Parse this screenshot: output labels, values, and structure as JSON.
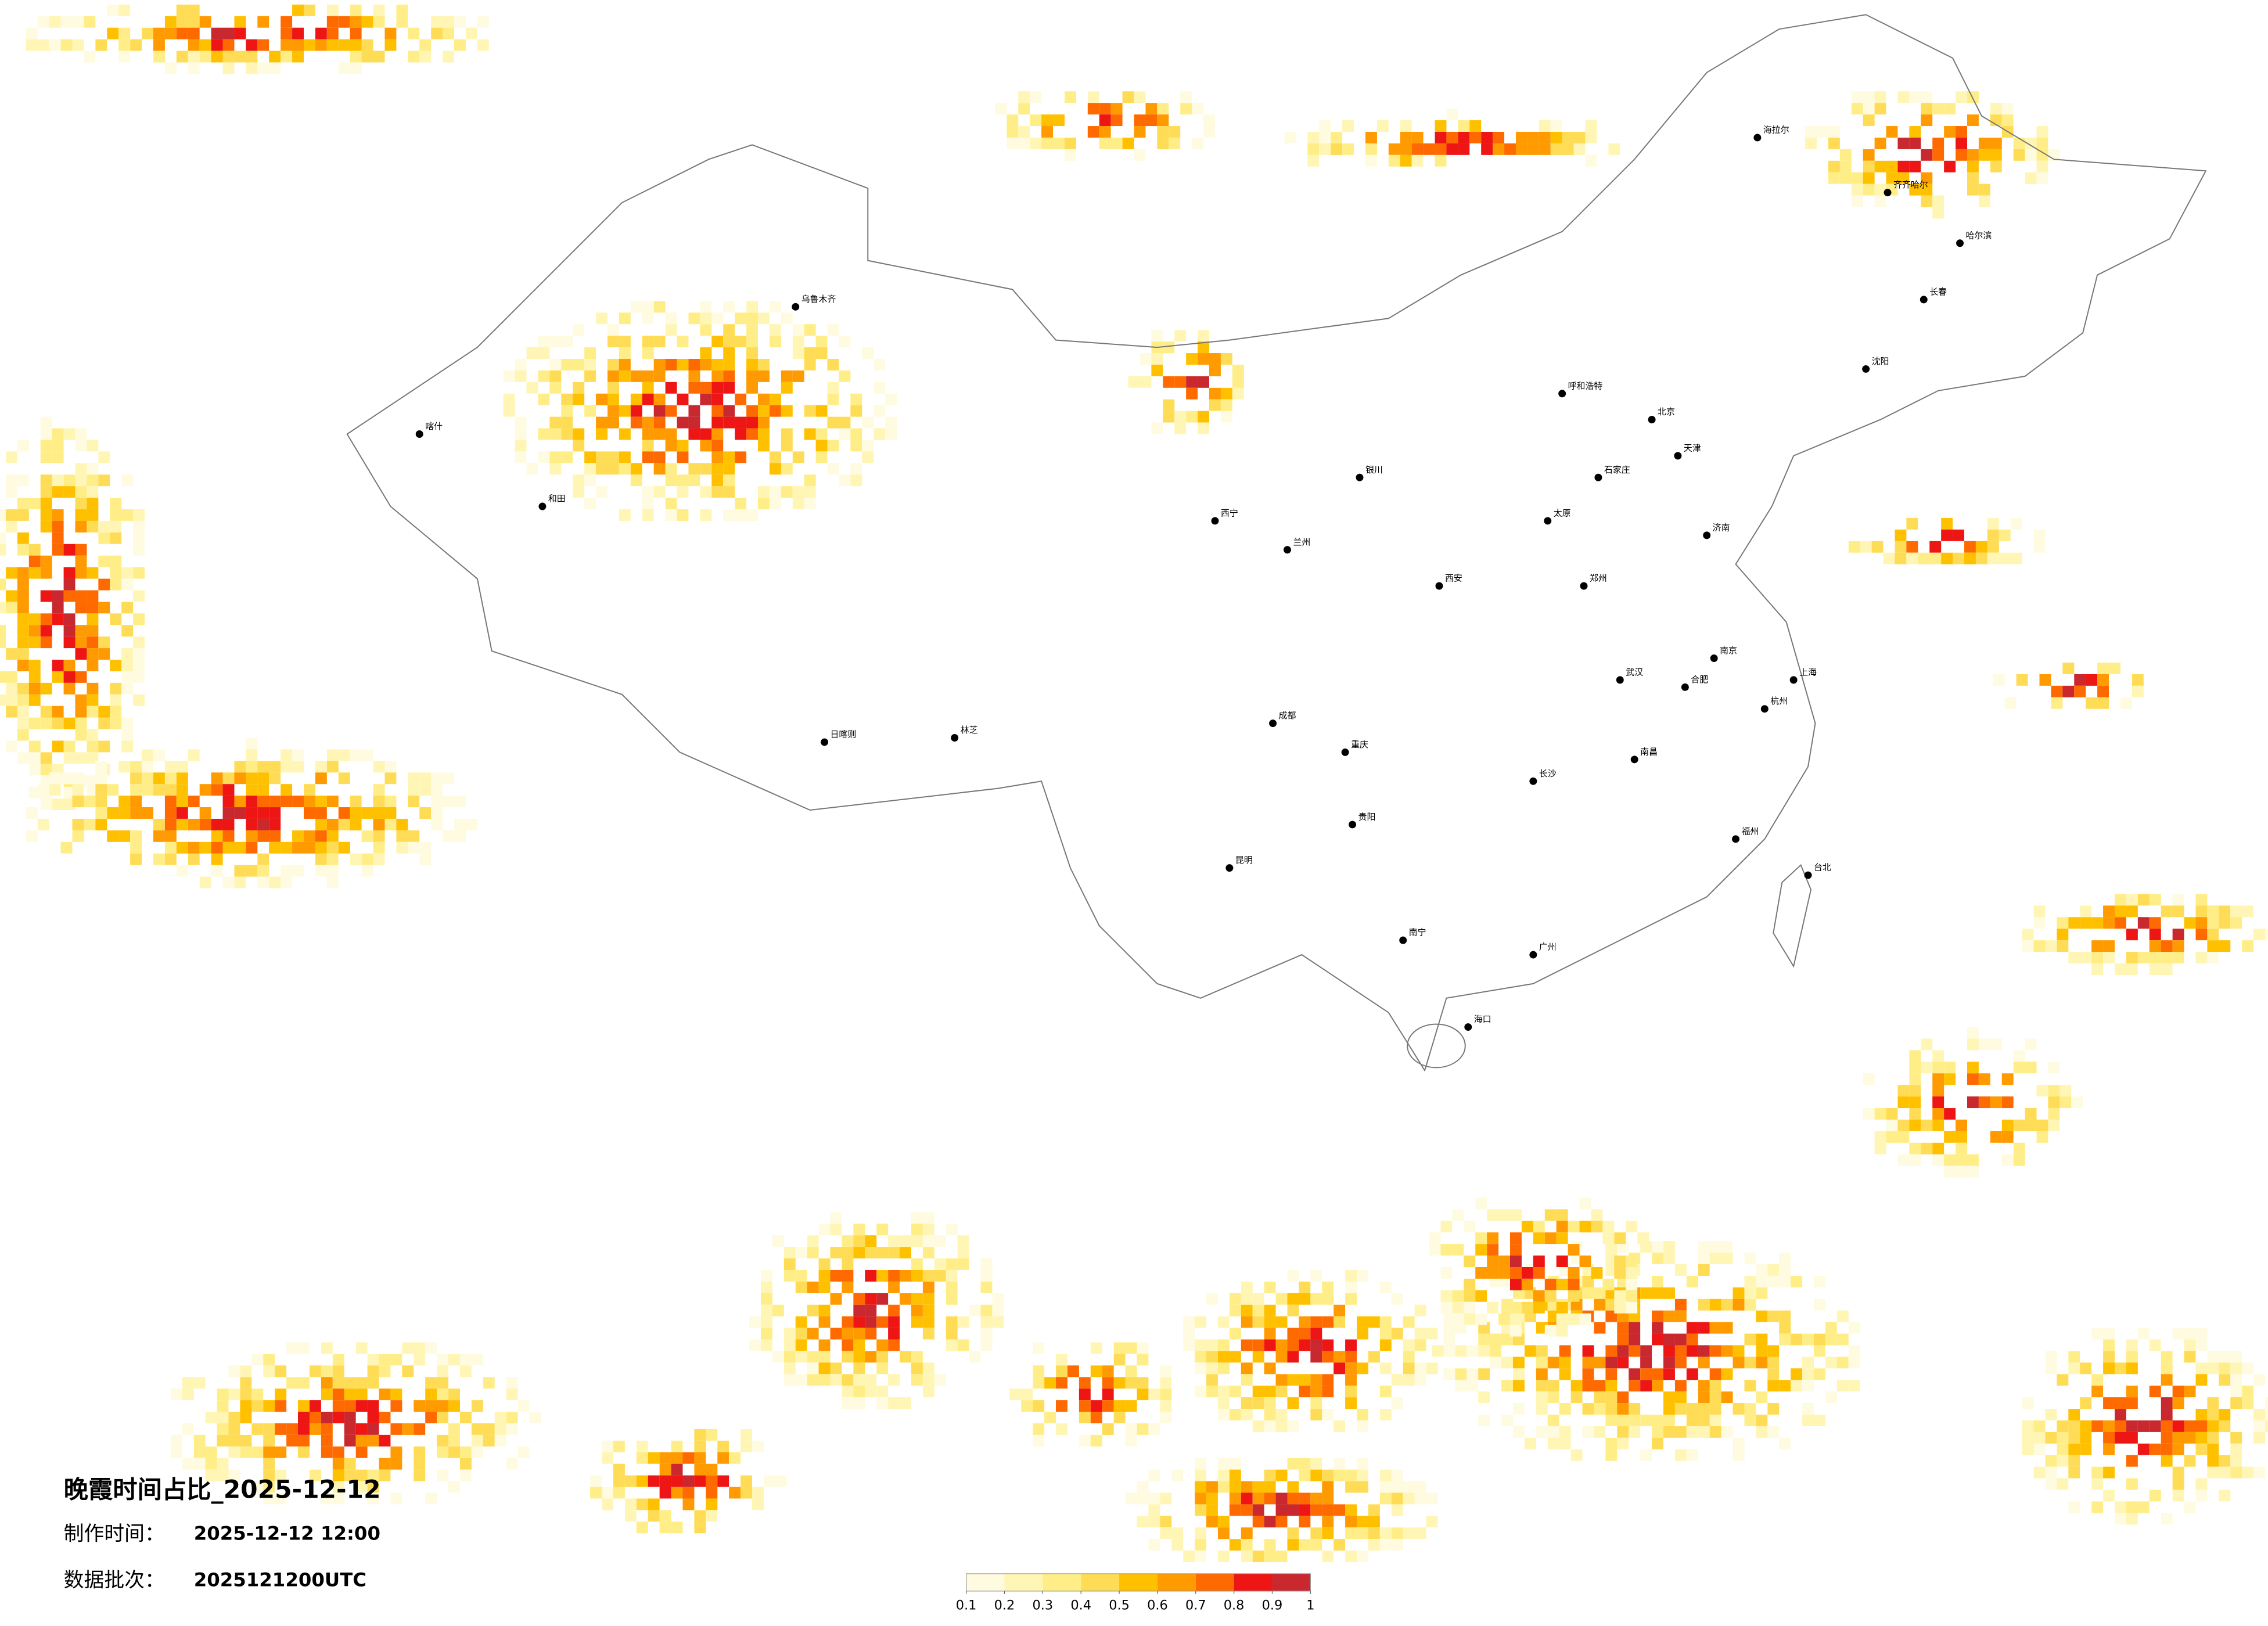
{
  "title": "晚霞时间占比_2025-12-12",
  "made_time": {
    "label": "制作时间：",
    "value": "2025-12-12 12:00"
  },
  "data_batch": {
    "label": "数据批次：",
    "value": "2025121200UTC"
  },
  "colorbar": {
    "ticks": [
      0.1,
      0.2,
      0.3,
      0.4,
      0.5,
      0.6,
      0.7,
      0.8,
      0.9,
      1
    ],
    "colors": [
      "#fffbe0",
      "#fff6b5",
      "#ffee88",
      "#ffdc55",
      "#ffc000",
      "#ff9a00",
      "#ff6a00",
      "#ee1515",
      "#c8282e"
    ]
  },
  "cities": [
    "海拉尔",
    "齐齐哈尔",
    "哈尔滨",
    "长春",
    "沈阳",
    "呼和浩特",
    "北京",
    "天津",
    "石家庄",
    "太原",
    "济南",
    "郑州",
    "西安",
    "兰州",
    "西宁",
    "银川",
    "日喀则",
    "林芝",
    "乌鲁木齐",
    "喀什",
    "和田",
    "成都",
    "重庆",
    "昆明",
    "贵阳",
    "南宁",
    "广州",
    "长沙",
    "武汉",
    "南昌",
    "杭州",
    "福州",
    "南京",
    "合肥",
    "上海",
    "海口",
    "台北"
  ]
}
